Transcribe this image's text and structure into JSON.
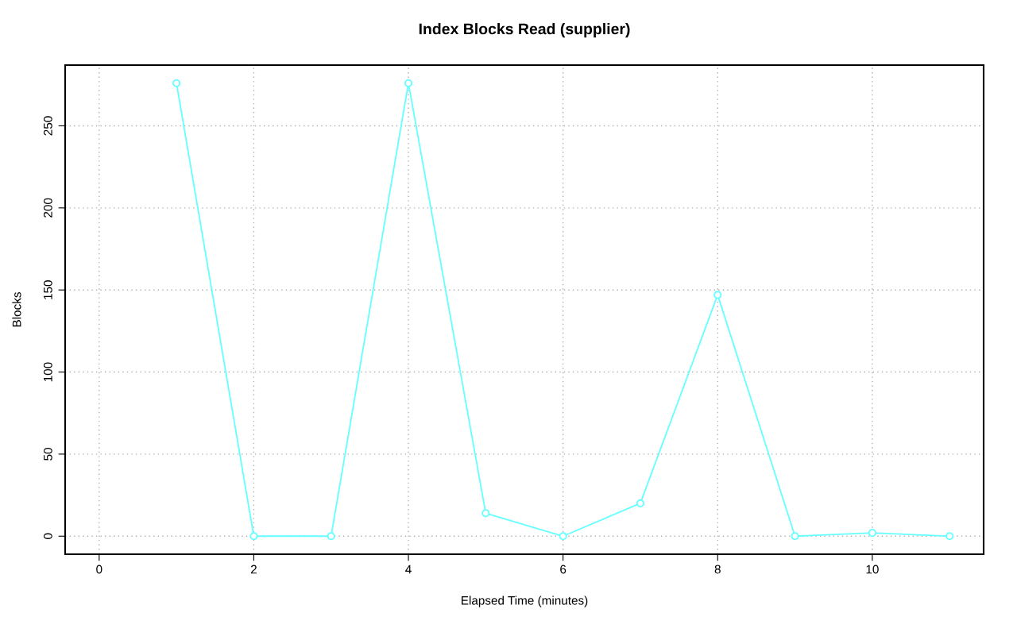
{
  "chart_data": {
    "type": "line",
    "title": "Index Blocks Read (supplier)",
    "xlabel": "Elapsed Time (minutes)",
    "ylabel": "Blocks",
    "x": [
      1,
      2,
      3,
      4,
      5,
      6,
      7,
      8,
      9,
      10,
      11
    ],
    "series": [
      {
        "color": "#66ffff",
        "values": [
          276,
          0,
          0,
          276,
          14,
          0,
          20,
          147,
          0,
          2,
          0
        ]
      }
    ],
    "xlim": [
      -0.44,
      11.44
    ],
    "ylim": [
      -11,
      287
    ],
    "xticks": [
      0,
      2,
      4,
      6,
      8,
      10
    ],
    "yticks": [
      0,
      50,
      100,
      150,
      200,
      250
    ],
    "grid": true,
    "marker": "circle",
    "line_style": "solid"
  }
}
